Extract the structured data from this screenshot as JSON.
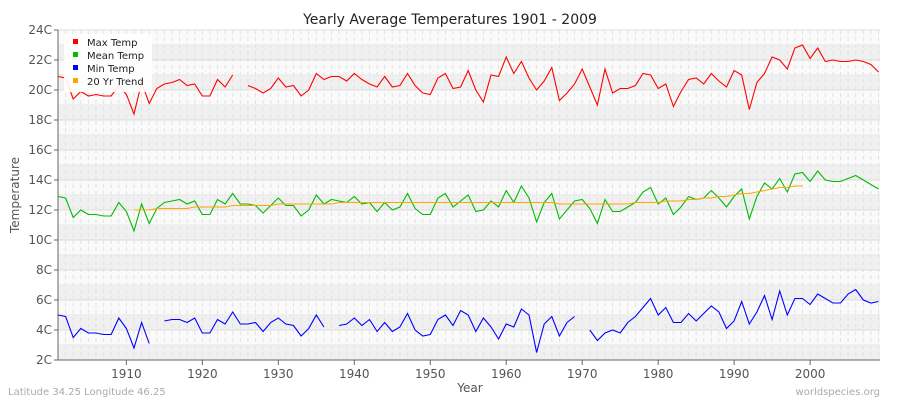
{
  "chart_data": {
    "type": "line",
    "title": "Yearly Average Temperatures 1901 - 2009",
    "xlabel": "Year",
    "ylabel": "Temperature",
    "xlim": [
      1901,
      2009
    ],
    "ylim": [
      2,
      24
    ],
    "x_ticks": [
      1910,
      1920,
      1930,
      1940,
      1950,
      1960,
      1970,
      1980,
      1990,
      2000
    ],
    "y_ticks": [
      2,
      4,
      6,
      8,
      10,
      12,
      14,
      16,
      18,
      20,
      22,
      24
    ],
    "y_tick_labels": [
      "2C",
      "4C",
      "6C",
      "8C",
      "10C",
      "12C",
      "14C",
      "16C",
      "18C",
      "20C",
      "22C",
      "24C"
    ],
    "grid": true,
    "legend_placement": "top-left",
    "start_year": 1901,
    "series": [
      {
        "name": "Max Temp",
        "color": "#ff0000",
        "values": [
          20.9,
          20.8,
          19.4,
          19.9,
          19.6,
          19.7,
          19.6,
          19.6,
          20.3,
          19.7,
          18.4,
          20.5,
          19.1,
          20.1,
          20.4,
          20.5,
          20.7,
          20.3,
          20.4,
          19.6,
          19.6,
          20.7,
          20.2,
          21.0,
          null,
          20.3,
          20.1,
          19.8,
          20.1,
          20.8,
          20.2,
          20.3,
          19.6,
          20.0,
          21.1,
          20.7,
          20.9,
          20.9,
          20.6,
          21.1,
          20.7,
          20.4,
          20.2,
          20.9,
          20.2,
          20.3,
          21.1,
          20.3,
          19.8,
          19.7,
          20.8,
          21.1,
          20.1,
          20.2,
          21.3,
          20.0,
          19.2,
          21.0,
          20.9,
          22.2,
          21.1,
          21.9,
          20.8,
          20.0,
          20.6,
          21.5,
          19.3,
          19.8,
          20.4,
          21.4,
          20.2,
          19.0,
          21.4,
          19.8,
          20.1,
          20.1,
          20.3,
          21.1,
          21.0,
          20.1,
          20.4,
          18.9,
          19.9,
          20.7,
          20.8,
          20.4,
          21.1,
          20.6,
          20.2,
          21.3,
          21.0,
          18.7,
          20.5,
          21.1,
          22.2,
          22.0,
          21.4,
          22.8,
          23.0,
          22.1,
          22.8,
          21.9,
          22.0,
          21.9,
          21.9,
          22.0,
          21.9,
          21.7,
          21.2
        ]
      },
      {
        "name": "Mean Temp",
        "color": "#00bb00",
        "values": [
          12.9,
          12.8,
          11.5,
          12.0,
          11.7,
          11.7,
          11.6,
          11.6,
          12.5,
          11.9,
          10.6,
          12.4,
          11.1,
          12.1,
          12.5,
          12.6,
          12.7,
          12.4,
          12.6,
          11.7,
          11.7,
          12.7,
          12.4,
          13.1,
          12.4,
          12.4,
          12.3,
          11.8,
          12.3,
          12.8,
          12.3,
          12.3,
          11.6,
          12.0,
          13.0,
          12.4,
          12.7,
          12.6,
          12.5,
          12.9,
          12.4,
          12.5,
          11.9,
          12.5,
          12.0,
          12.2,
          13.1,
          12.1,
          11.7,
          11.7,
          12.8,
          13.1,
          12.2,
          12.6,
          13.0,
          11.9,
          12.0,
          12.6,
          12.2,
          13.3,
          12.5,
          13.6,
          12.8,
          11.2,
          12.5,
          13.1,
          11.4,
          12.0,
          12.6,
          12.7,
          12.1,
          11.1,
          12.7,
          11.9,
          11.9,
          12.2,
          12.5,
          13.2,
          13.5,
          12.4,
          12.8,
          11.7,
          12.2,
          12.9,
          12.7,
          12.8,
          13.3,
          12.8,
          12.2,
          12.9,
          13.4,
          11.4,
          12.9,
          13.8,
          13.4,
          14.1,
          13.2,
          14.4,
          14.5,
          13.9,
          14.6,
          14.0,
          13.9,
          13.9,
          14.1,
          14.3,
          14.0,
          13.7,
          13.4
        ]
      },
      {
        "name": "Min Temp",
        "color": "#0000ff",
        "values": [
          5.0,
          4.9,
          3.5,
          4.1,
          3.8,
          3.8,
          3.7,
          3.7,
          4.8,
          4.1,
          2.8,
          4.5,
          3.1,
          null,
          4.6,
          4.7,
          4.7,
          4.5,
          4.8,
          3.8,
          3.8,
          4.7,
          4.4,
          5.2,
          4.4,
          4.4,
          4.5,
          3.9,
          4.5,
          4.8,
          4.4,
          4.3,
          3.6,
          4.1,
          5.0,
          4.2,
          null,
          4.3,
          4.4,
          4.8,
          4.3,
          4.7,
          3.9,
          4.5,
          3.9,
          4.2,
          5.1,
          4.0,
          3.6,
          3.7,
          4.7,
          5.0,
          4.3,
          5.3,
          5.0,
          3.9,
          4.8,
          4.2,
          3.4,
          4.4,
          4.2,
          5.4,
          5.0,
          2.5,
          4.4,
          4.9,
          3.6,
          4.5,
          4.9,
          null,
          4.0,
          3.3,
          3.8,
          4.0,
          3.8,
          4.5,
          4.9,
          5.5,
          6.1,
          5.0,
          5.5,
          4.5,
          4.5,
          5.1,
          4.6,
          5.1,
          5.6,
          5.2,
          4.1,
          4.6,
          5.9,
          4.4,
          5.2,
          6.3,
          4.7,
          6.6,
          5.0,
          6.1,
          6.1,
          5.7,
          6.4,
          6.1,
          5.8,
          5.8,
          6.4,
          6.7,
          6.0,
          5.8,
          5.9
        ]
      },
      {
        "name": "20 Yr Trend",
        "color": "#ffa500",
        "values": [
          null,
          null,
          null,
          null,
          null,
          null,
          null,
          null,
          null,
          null,
          12.0,
          12.0,
          12.0,
          12.1,
          12.1,
          12.1,
          12.1,
          12.1,
          12.2,
          12.2,
          12.2,
          12.2,
          12.2,
          12.3,
          12.3,
          12.3,
          12.3,
          12.3,
          12.3,
          12.4,
          12.4,
          12.4,
          12.4,
          12.4,
          12.4,
          12.4,
          12.4,
          12.5,
          12.5,
          12.5,
          12.5,
          12.5,
          12.5,
          12.5,
          12.5,
          12.5,
          12.5,
          12.5,
          12.5,
          12.5,
          12.5,
          12.5,
          12.5,
          12.5,
          12.5,
          12.5,
          12.5,
          12.5,
          12.5,
          12.5,
          12.5,
          12.5,
          12.5,
          12.5,
          12.5,
          12.5,
          12.4,
          12.4,
          12.4,
          12.4,
          12.4,
          12.4,
          12.4,
          12.4,
          12.4,
          12.4,
          12.5,
          12.5,
          12.5,
          12.5,
          12.6,
          12.6,
          12.6,
          12.7,
          12.7,
          12.8,
          12.8,
          12.9,
          12.9,
          13.0,
          13.1,
          13.1,
          13.2,
          13.3,
          13.4,
          13.5,
          13.5,
          13.6,
          13.6,
          null,
          null,
          null,
          null,
          null,
          null,
          null,
          null,
          null,
          null
        ]
      }
    ]
  },
  "footer": {
    "location": "Latitude 34.25 Longitude 46.25",
    "site": "worldspecies.org"
  }
}
